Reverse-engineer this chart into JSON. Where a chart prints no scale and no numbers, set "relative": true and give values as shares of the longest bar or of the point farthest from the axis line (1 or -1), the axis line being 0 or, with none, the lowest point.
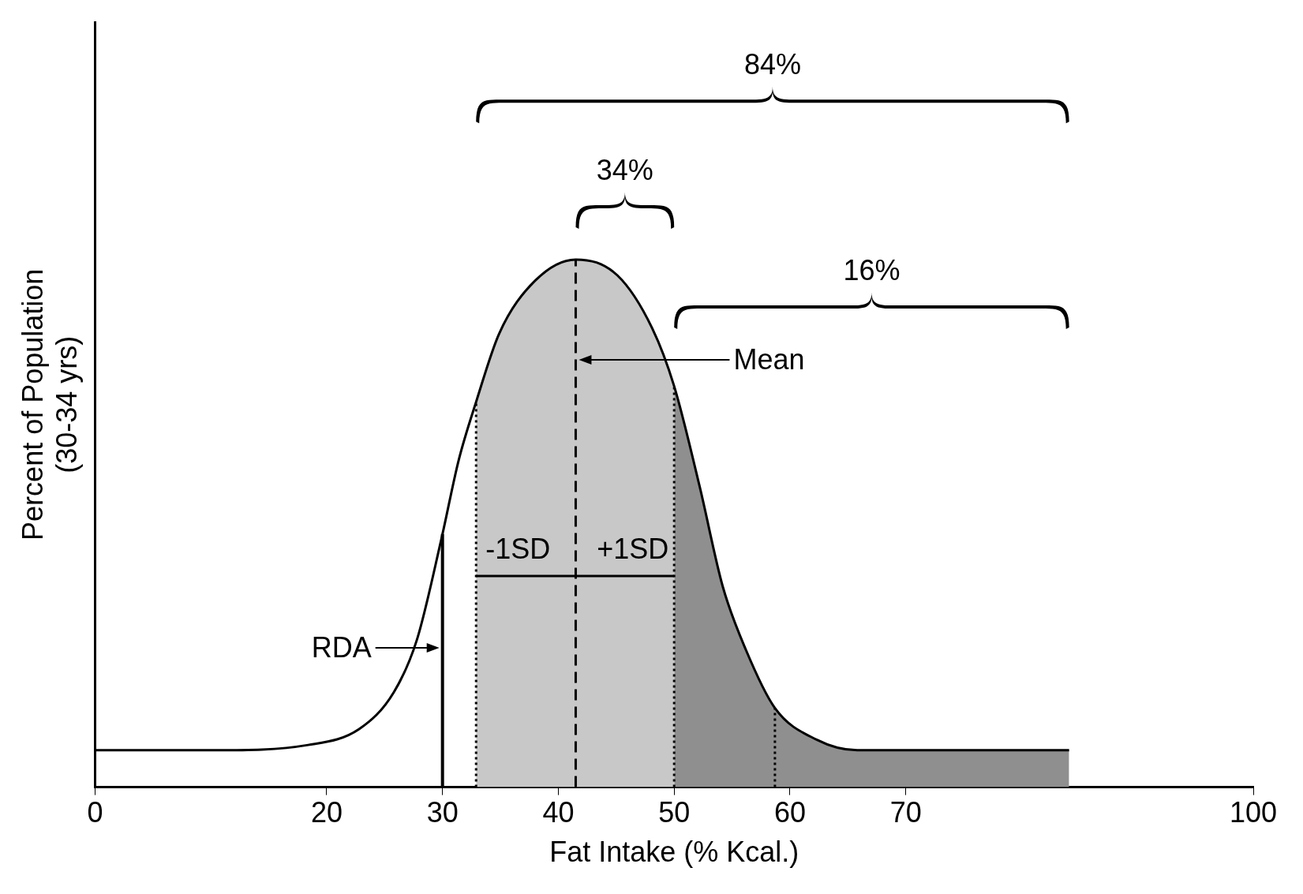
{
  "chart_data": {
    "type": "line",
    "relative": true,
    "xlabel": "Fat Intake (% Kcal.)",
    "ylabel": "Percent of Population\n(30-34 yrs)",
    "xlim": [
      0,
      100
    ],
    "xticks": [
      0,
      20,
      30,
      40,
      50,
      60,
      70,
      100
    ],
    "grid": false,
    "legend": false,
    "marker": "none",
    "line_style": "solid",
    "series": [
      {
        "color": "#000000",
        "x": [
          0,
          10.4,
          18.4,
          22.8,
          25.8,
          27.8,
          29.9,
          31.4,
          32.9,
          34.9,
          38,
          41.5,
          45.1,
          48.1,
          50,
          52.2,
          54.2,
          56.2,
          58.7,
          62.3,
          65.8,
          84.1
        ],
        "values": [
          0.07,
          0.07,
          0.08,
          0.11,
          0.18,
          0.28,
          0.47,
          0.62,
          0.73,
          0.86,
          0.96,
          1,
          0.97,
          0.87,
          0.76,
          0.57,
          0.38,
          0.26,
          0.15,
          0.09,
          0.07,
          0.07
        ]
      },
      {
        "color": "#000000",
        "x": [
          32.9,
          50
        ],
        "values": [
          0.4,
          0.4
        ]
      },
      {
        "type": "area",
        "color": "#c8c8c8",
        "x": [
          32.9,
          34.9,
          38,
          41.5,
          45.1,
          48.1,
          50
        ],
        "values": [
          0.73,
          0.86,
          0.96,
          1,
          0.97,
          0.87,
          0.76
        ]
      },
      {
        "type": "area",
        "color": "#8f8f8f",
        "x": [
          50,
          52.2,
          54.2,
          56.2,
          58.7,
          62.3,
          65.8,
          84.1
        ],
        "values": [
          0.76,
          0.57,
          0.38,
          0.26,
          0.15,
          0.09,
          0.07,
          0.07
        ]
      }
    ],
    "ref_lines": [
      {
        "axis": "x",
        "value": 30,
        "line_style": "solid"
      },
      {
        "axis": "x",
        "value": 41.5,
        "line_style": "dashed"
      },
      {
        "axis": "x",
        "value": 32.9,
        "line_style": "dotted"
      },
      {
        "axis": "x",
        "value": 50,
        "line_style": "dotted"
      },
      {
        "axis": "x",
        "value": 58.7,
        "line_style": "dotted"
      }
    ],
    "annotations": [
      "84%",
      "34%",
      "16%",
      "-1SD",
      "+1SD",
      "RDA",
      "Mean"
    ]
  }
}
